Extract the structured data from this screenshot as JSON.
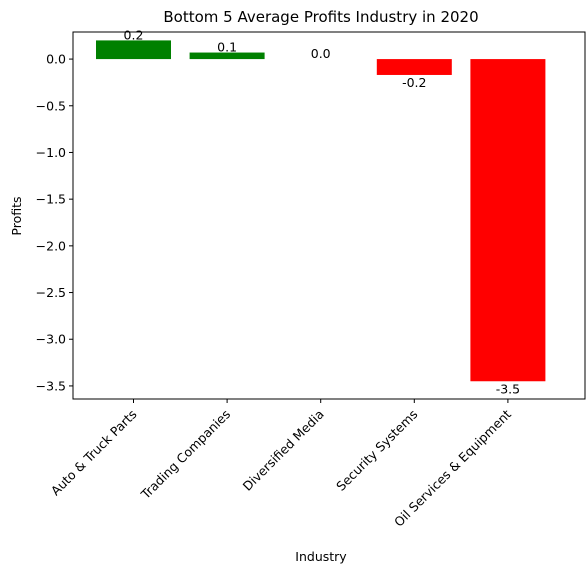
{
  "chart_data": {
    "type": "bar",
    "title": "Bottom 5 Average Profits Industry in 2020",
    "xlabel": "Industry",
    "ylabel": "Profits",
    "categories": [
      "Auto & Truck Parts",
      "Trading Companies",
      "Diversified Media",
      "Security Systems",
      "Oil Services & Equipment"
    ],
    "values": [
      0.2,
      0.07,
      0.0,
      -0.17,
      -3.45
    ],
    "data_labels": [
      "0.2",
      "0.1",
      "0.0",
      "-0.2",
      "-3.5"
    ],
    "ylim": [
      -3.64,
      0.29
    ],
    "yticks": [
      0.0,
      -0.5,
      -1.0,
      -1.5,
      -2.0,
      -2.5,
      -3.0,
      -3.5
    ],
    "ytick_labels": [
      "0.0",
      "−0.5",
      "−1.0",
      "−1.5",
      "−2.0",
      "−2.5",
      "−3.0",
      "−3.5"
    ],
    "colors": {
      "positive": "#008000",
      "negative": "#ff0000"
    },
    "grid": false,
    "legend": "none"
  }
}
